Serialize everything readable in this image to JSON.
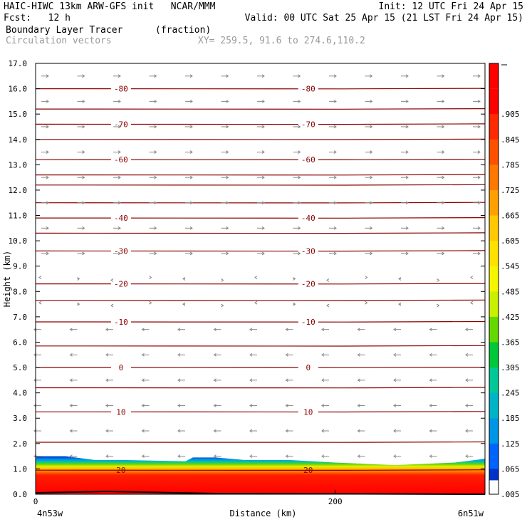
{
  "header": {
    "line1_left": "HAIC-HIWC 13km ARW-GFS init   NCAR/MMM",
    "line1_right": "Init: 12 UTC Fri 24 Apr 15",
    "line2_left": "Fcst:   12 h",
    "line2_right": "Valid: 00 UTC Sat 25 Apr 15 (21 LST Fri 24 Apr 15)",
    "field_name": "Boundary Layer Tracer",
    "field_units": "(fraction)",
    "vector_name": "Circulation vectors",
    "xy_text": "XY= 259.5, 91.6 to 274.6,110.2"
  },
  "chart_data": {
    "type": "heatmap",
    "ylabel": "Height (km)",
    "xlabel": "Distance (km)",
    "x_start_label": "4n53w",
    "x_end_label": "6n51w",
    "ylim": [
      0,
      17
    ],
    "xlim": [
      0,
      300
    ],
    "yticks": [
      "0.0",
      "1.0",
      "2.0",
      "3.0",
      "4.0",
      "5.0",
      "6.0",
      "7.0",
      "8.0",
      "9.0",
      "10.0",
      "11.0",
      "12.0",
      "13.0",
      "14.0",
      "15.0",
      "16.0",
      "17.0"
    ],
    "xticks": [
      {
        "value": 0,
        "label": "0"
      },
      {
        "value": 200,
        "label": "200"
      }
    ],
    "colorbar_labels": [
      ".905",
      ".845",
      ".785",
      ".725",
      ".665",
      ".605",
      ".545",
      ".485",
      ".425",
      ".365",
      ".305",
      ".245",
      ".185",
      ".125",
      ".065",
      ".005"
    ],
    "colorbar_colors": [
      "#ff0000",
      "#ff2a00",
      "#ff5000",
      "#ff7800",
      "#ffa000",
      "#ffc800",
      "#ffe100",
      "#f5f500",
      "#c8f000",
      "#64d800",
      "#00c838",
      "#00c896",
      "#00b4c8",
      "#0096e6",
      "#0064ff",
      "#0032c8"
    ],
    "contour_line_color": "#8b0000",
    "vector_color": "#888888",
    "temperature_contours": [
      {
        "label": "-80",
        "height_km": 16.0
      },
      {
        "label": "-70",
        "height_km": 14.6
      },
      {
        "label": "-60",
        "height_km": 13.2
      },
      {
        "label": "-40",
        "height_km": 10.9
      },
      {
        "label": "-30",
        "height_km": 9.6
      },
      {
        "label": "-20",
        "height_km": 8.3
      },
      {
        "label": "-10",
        "height_km": 6.8
      },
      {
        "label": "0",
        "height_km": 5.0
      },
      {
        "label": "10",
        "height_km": 3.25
      },
      {
        "label": "20",
        "height_km": 0.95
      }
    ],
    "extra_contour_heights_km": [
      15.2,
      14.0,
      12.6,
      12.2,
      11.5,
      10.3,
      7.65,
      5.85,
      4.2,
      2.05
    ],
    "boundary_layer_top_km": [
      [
        0,
        1.5
      ],
      [
        20,
        1.5
      ],
      [
        40,
        1.35
      ],
      [
        60,
        1.35
      ],
      [
        100,
        1.3
      ],
      [
        105,
        1.45
      ],
      [
        120,
        1.45
      ],
      [
        140,
        1.35
      ],
      [
        170,
        1.35
      ],
      [
        200,
        1.25
      ],
      [
        240,
        1.15
      ],
      [
        280,
        1.25
      ],
      [
        300,
        1.4
      ]
    ],
    "wind_direction_rows": [
      {
        "height_km": 16.5,
        "dir": "east"
      },
      {
        "height_km": 15.5,
        "dir": "east"
      },
      {
        "height_km": 14.5,
        "dir": "east"
      },
      {
        "height_km": 13.5,
        "dir": "east"
      },
      {
        "height_km": 12.5,
        "dir": "east"
      },
      {
        "height_km": 11.5,
        "dir": "east"
      },
      {
        "height_km": 10.5,
        "dir": "east"
      },
      {
        "height_km": 9.5,
        "dir": "east"
      },
      {
        "height_km": 8.5,
        "dir": "weak"
      },
      {
        "height_km": 7.5,
        "dir": "weak"
      },
      {
        "height_km": 6.5,
        "dir": "west"
      },
      {
        "height_km": 5.5,
        "dir": "west"
      },
      {
        "height_km": 4.5,
        "dir": "west"
      },
      {
        "height_km": 3.5,
        "dir": "west"
      },
      {
        "height_km": 2.5,
        "dir": "west"
      },
      {
        "height_km": 1.5,
        "dir": "west"
      }
    ]
  }
}
